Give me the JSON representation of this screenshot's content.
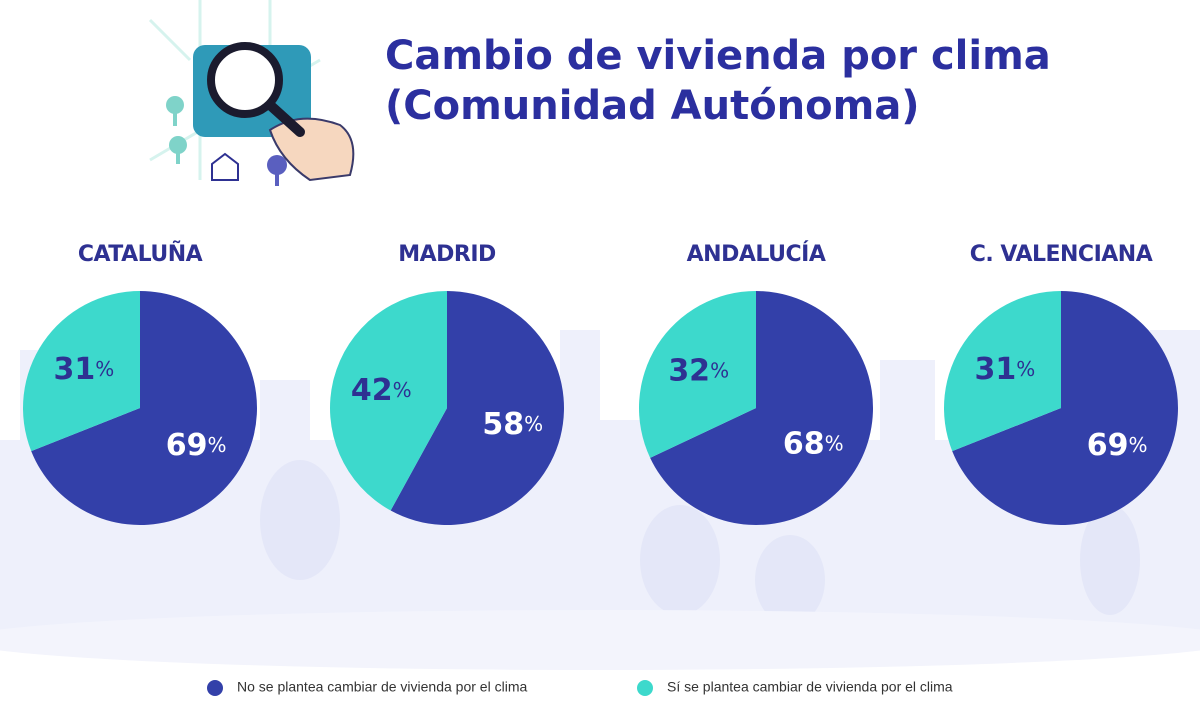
{
  "title": [
    "Cambio de vivienda por clima",
    "(Comunidad Autónoma)"
  ],
  "legend": [
    "No se plantea cambiar de vivienda por el clima",
    "Sí se plantea cambiar de vivienda por el clima"
  ],
  "colors": [
    "#3340a9",
    "#3dd9cc"
  ],
  "chart_data": [
    {
      "type": "pie",
      "title": "CATALUÑA",
      "values": [
        69,
        31
      ],
      "value_labels": [
        "69%",
        "31%"
      ]
    },
    {
      "type": "pie",
      "title": "MADRID",
      "values": [
        58,
        42
      ],
      "value_labels": [
        "58%",
        "42%"
      ]
    },
    {
      "type": "pie",
      "title": "ANDALUCÍA",
      "values": [
        68,
        32
      ],
      "value_labels": [
        "68%",
        "32%"
      ]
    },
    {
      "type": "pie",
      "title": "C. VALENCIANA",
      "values": [
        69,
        31
      ],
      "value_labels": [
        "69%",
        "31%"
      ]
    }
  ]
}
